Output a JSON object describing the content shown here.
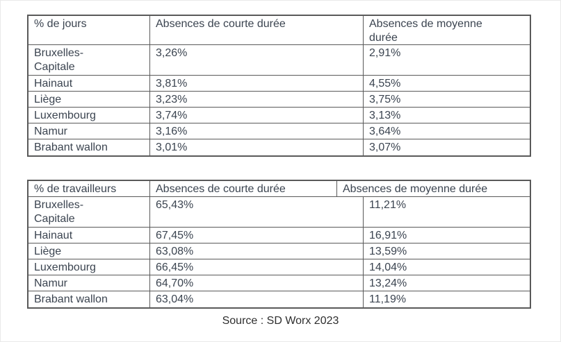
{
  "page": {
    "source_note": "Source : SD Worx 2023"
  },
  "colors": {
    "table_border": "#595959",
    "table_text": "#3b4450",
    "source_text": "#2e2e2e",
    "background": "#ffffff"
  },
  "tables": [
    {
      "id": "days",
      "headers": [
        "% de jours",
        "Absences de courte durée",
        "Absences de moyenne\ndurée"
      ],
      "rows": [
        {
          "region": "Bruxelles-\nCapitale",
          "short": "3,26%",
          "medium": "2,91%"
        },
        {
          "region": "Hainaut",
          "short": "3,81%",
          "medium": "4,55%"
        },
        {
          "region": "Liège",
          "short": "3,23%",
          "medium": "3,75%"
        },
        {
          "region": "Luxembourg",
          "short": "3,74%",
          "medium": "3,13%"
        },
        {
          "region": "Namur",
          "short": "3,16%",
          "medium": "3,64%"
        },
        {
          "region": "Brabant wallon",
          "short": "3,01%",
          "medium": "3,07%"
        }
      ]
    },
    {
      "id": "workers",
      "headers": [
        "% de travailleurs",
        "Absences de courte durée",
        "Absences de moyenne durée"
      ],
      "rows": [
        {
          "region": "Bruxelles-\nCapitale",
          "short": "65,43%",
          "medium": "11,21%"
        },
        {
          "region": "Hainaut",
          "short": "67,45%",
          "medium": "16,91%"
        },
        {
          "region": "Liège",
          "short": "63,08%",
          "medium": "13,59%"
        },
        {
          "region": "Luxembourg",
          "short": "66,45%",
          "medium": "14,04%"
        },
        {
          "region": "Namur",
          "short": "64,70%",
          "medium": "13,24%"
        },
        {
          "region": "Brabant wallon",
          "short": "63,04%",
          "medium": "11,19%"
        }
      ]
    }
  ]
}
